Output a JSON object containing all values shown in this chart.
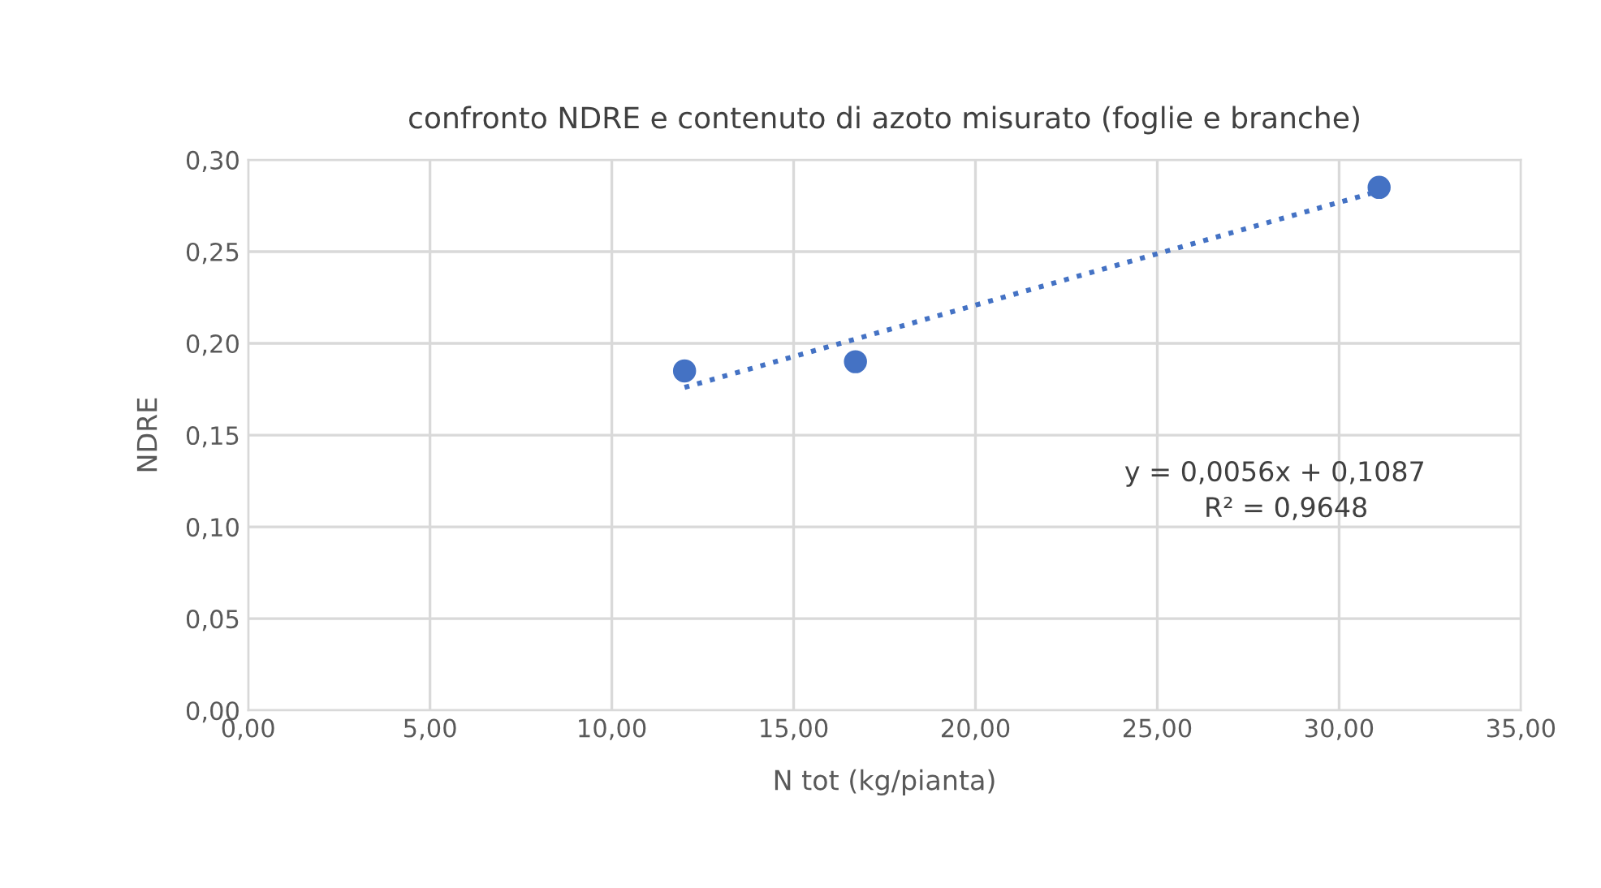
{
  "chart_data": {
    "type": "scatter",
    "title": "confronto NDRE e contenuto di azoto misurato (foglie e branche)",
    "xlabel": "N tot (kg/pianta)",
    "ylabel": "NDRE",
    "series": [
      {
        "color": "#4472c4",
        "x": [
          12.0,
          16.7,
          31.1
        ],
        "values": [
          0.185,
          0.19,
          0.285
        ],
        "marker": "circle"
      },
      {
        "type": "line",
        "color": "#4472c4",
        "x": [
          12.0,
          31.1
        ],
        "values": [
          0.176,
          0.283
        ],
        "line_style": "dotted",
        "marker": "none"
      }
    ],
    "annotations": [
      "y = 0,0056x + 0,1087",
      "R² = 0,9648"
    ],
    "xlim": [
      0,
      35
    ],
    "ylim": [
      0,
      0.3
    ],
    "xticks": [
      {
        "value": 0,
        "label": "0,00"
      },
      {
        "value": 5,
        "label": "5,00"
      },
      {
        "value": 10,
        "label": "10,00"
      },
      {
        "value": 15,
        "label": "15,00"
      },
      {
        "value": 20,
        "label": "20,00"
      },
      {
        "value": 25,
        "label": "25,00"
      },
      {
        "value": 30,
        "label": "30,00"
      },
      {
        "value": 35,
        "label": "35,00"
      }
    ],
    "yticks": [
      {
        "value": 0,
        "label": "0,00"
      },
      {
        "value": 0.05,
        "label": "0,05"
      },
      {
        "value": 0.1,
        "label": "0,10"
      },
      {
        "value": 0.15,
        "label": "0,15"
      },
      {
        "value": 0.2,
        "label": "0,20"
      },
      {
        "value": 0.25,
        "label": "0,25"
      },
      {
        "value": 0.3,
        "label": "0,30"
      }
    ],
    "grid": true
  }
}
